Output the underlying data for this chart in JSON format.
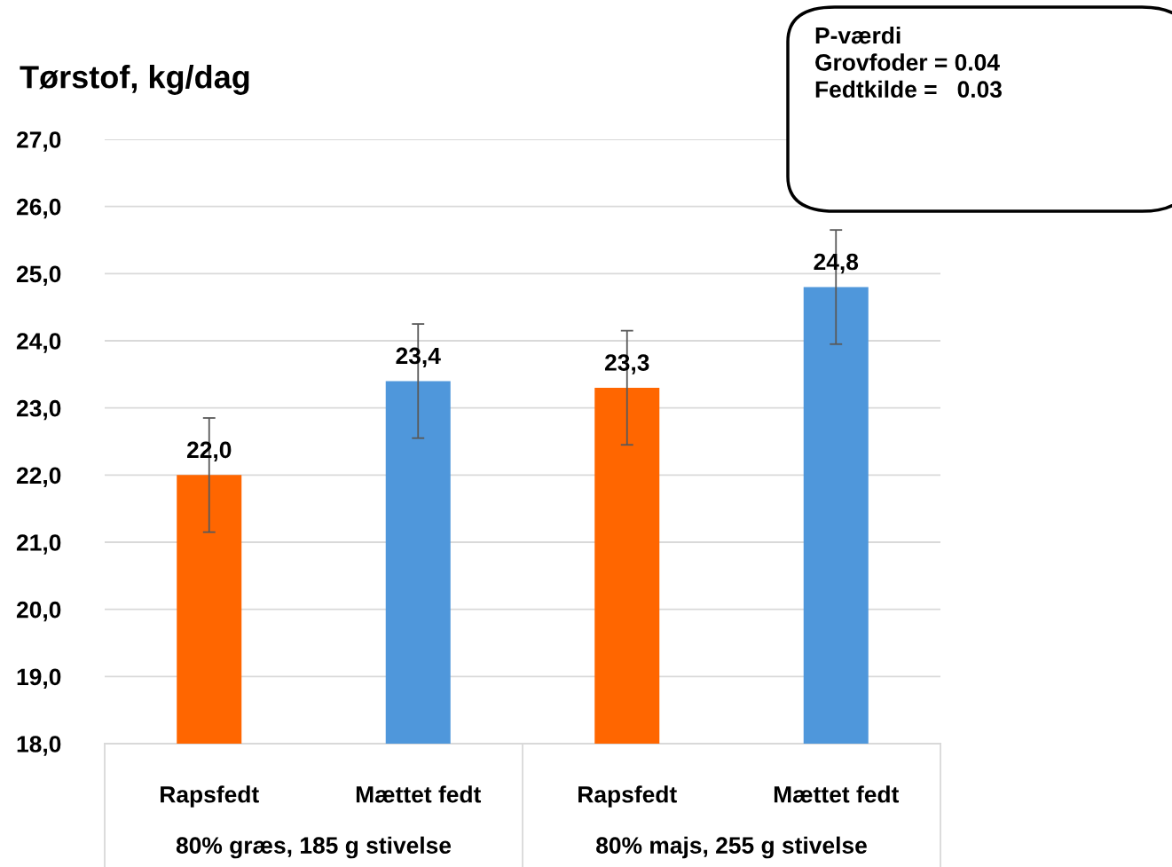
{
  "chart_data": {
    "type": "bar",
    "title": "Tørstof, kg/dag",
    "categories": [
      "Rapsfedt",
      "Mættet fedt",
      "Rapsfedt",
      "Mættet fedt"
    ],
    "values": [
      22.0,
      23.4,
      23.3,
      24.8
    ],
    "colors": [
      "#ff6600",
      "#4f97db",
      "#ff6600",
      "#4f97db"
    ],
    "errors": [
      0.85,
      0.85,
      0.85,
      0.85
    ],
    "value_labels": [
      "22,0",
      "23,4",
      "23,3",
      "24,8"
    ],
    "ylim": [
      18,
      27
    ],
    "yticks": [
      {
        "value": 18,
        "label": "18,0"
      },
      {
        "value": 19,
        "label": "19,0"
      },
      {
        "value": 20,
        "label": "20,0"
      },
      {
        "value": 21,
        "label": "21,0"
      },
      {
        "value": 22,
        "label": "22,0"
      },
      {
        "value": 23,
        "label": "23,0"
      },
      {
        "value": 24,
        "label": "24,0"
      },
      {
        "value": 25,
        "label": "25,0"
      },
      {
        "value": 26,
        "label": "26,0"
      },
      {
        "value": 27,
        "label": "27,0"
      }
    ],
    "grid": "y",
    "annotations": [
      "P-værdi\nGrovfoder = 0.04\nFedtkilde =   0.03",
      "80% græs, 185 g stivelse",
      "80% majs, 255 g stivelse"
    ]
  }
}
